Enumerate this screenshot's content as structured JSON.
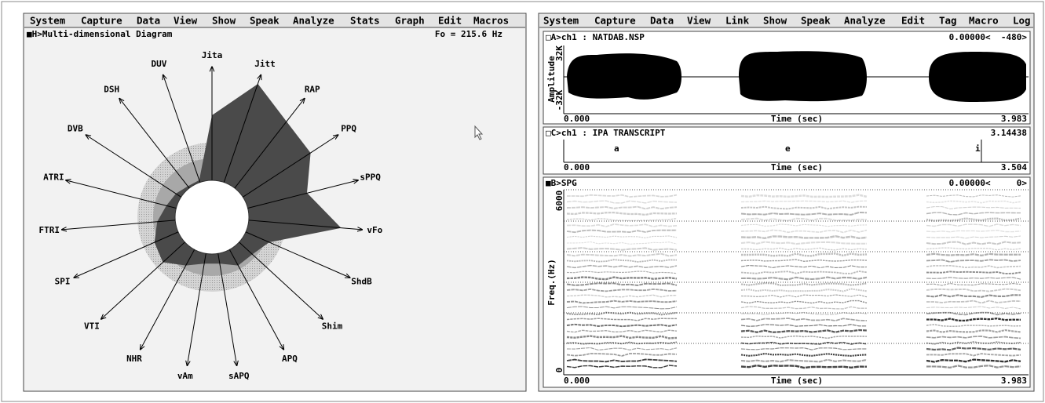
{
  "left": {
    "menu": [
      "System",
      "Capture",
      "Data",
      "View",
      "Show",
      "Speak",
      "Analyze",
      "Stats",
      "Graph",
      "Edit",
      "Macros"
    ],
    "panel": {
      "title": "■H>Multi-dimensional Diagram",
      "fo": "Fo = 215.6 Hz",
      "axes": [
        "Jita",
        "Jitt",
        "RAP",
        "PPQ",
        "sPPQ",
        "vFo",
        "ShdB",
        "Shim",
        "APQ",
        "sAPQ",
        "vAm",
        "NHR",
        "VTI",
        "SPI",
        "FTRI",
        "ATRI",
        "DVB",
        "DSH",
        "DUV"
      ]
    }
  },
  "right": {
    "menu": [
      "System",
      "Capture",
      "Data",
      "View",
      "Link",
      "Show",
      "Speak",
      "Analyze",
      "Edit",
      "Tag",
      "Macro",
      "Log"
    ],
    "waveform": {
      "title": "□A>ch1 : NATDAB.NSP",
      "cursor": "0.00000<  -480>",
      "ylabel": "Amplitude",
      "ymax": "32K",
      "ymin": "-32K",
      "xstart": "0.000",
      "xlabel": "Time (sec)",
      "xend": "3.983"
    },
    "transcript": {
      "title": "□C>ch1 : IPA TRANSCRIPT",
      "cursor": "3.14438",
      "segments": [
        "a",
        "e",
        "i"
      ],
      "xstart": "0.000",
      "xlabel": "Time (sec)",
      "xend": "3.504"
    },
    "spectrogram": {
      "title": "■B>SPG",
      "cursor": "0.00000<     0>",
      "ymax": "6000",
      "ymin": "0",
      "ylabel": "Freq.(Hz)",
      "xstart": "0.000",
      "xlabel": "Time (sec)",
      "xend": "3.983"
    }
  }
}
